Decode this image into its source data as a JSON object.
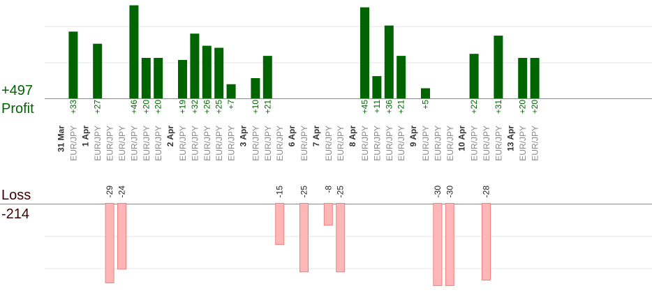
{
  "summary": {
    "profit_caption": "Profit",
    "profit_total": "+497",
    "loss_caption": "Loss",
    "loss_total": "-214"
  },
  "colors": {
    "profit_bar": "#006400",
    "profit_label": "#006400",
    "loss_bar": "#ffb6b6",
    "loss_bar_stroke": "#f08080",
    "loss_label": "#222222",
    "date_label": "#333333",
    "symbol_label": "#888888",
    "grid": "#e6e6e6",
    "axis": "#888888"
  },
  "chart_data": {
    "type": "bar",
    "x_kind": "trade sequence",
    "profit_scale_max": 55,
    "loss_scale_max": 30,
    "trades": [
      {
        "slot": 0,
        "date": "31 Mar"
      },
      {
        "slot": 1,
        "symbol": "EUR/JPY",
        "profit": 33,
        "label": "+33"
      },
      {
        "slot": 2,
        "date": "1 Apr"
      },
      {
        "slot": 3,
        "symbol": "EUR/JPY",
        "profit": 27,
        "label": "+27"
      },
      {
        "slot": 4,
        "symbol": "EUR/JPY",
        "loss": -29,
        "label": "-29"
      },
      {
        "slot": 5,
        "symbol": "EUR/JPY",
        "loss": -24,
        "label": "-24"
      },
      {
        "slot": 6,
        "symbol": "EUR/JPY",
        "profit": 46,
        "label": "+46"
      },
      {
        "slot": 7,
        "symbol": "EUR/JPY",
        "profit": 20,
        "label": "+20"
      },
      {
        "slot": 8,
        "symbol": "EUR/JPY",
        "profit": 20,
        "label": "+20"
      },
      {
        "slot": 9,
        "date": "2 Apr"
      },
      {
        "slot": 10,
        "symbol": "EUR/JPY",
        "profit": 19,
        "label": "+19"
      },
      {
        "slot": 11,
        "symbol": "EUR/JPY",
        "profit": 32,
        "label": "+32"
      },
      {
        "slot": 12,
        "symbol": "EUR/JPY",
        "profit": 26,
        "label": "+26"
      },
      {
        "slot": 13,
        "symbol": "EUR/JPY",
        "profit": 25,
        "label": "+25"
      },
      {
        "slot": 14,
        "symbol": "EUR/JPY",
        "profit": 7,
        "label": "+7"
      },
      {
        "slot": 15,
        "date": "3 Apr"
      },
      {
        "slot": 16,
        "symbol": "EUR/JPY",
        "profit": 10,
        "label": "+10"
      },
      {
        "slot": 17,
        "symbol": "EUR/JPY",
        "profit": 21,
        "label": "+21"
      },
      {
        "slot": 18,
        "symbol": "EUR/JPY",
        "loss": -15,
        "label": "-15"
      },
      {
        "slot": 19,
        "date": "6 Apr"
      },
      {
        "slot": 20,
        "symbol": "EUR/JPY",
        "loss": -25,
        "label": "-25"
      },
      {
        "slot": 21,
        "date": "7 Apr"
      },
      {
        "slot": 22,
        "symbol": "EUR/JPY",
        "loss": -8,
        "label": "-8"
      },
      {
        "slot": 23,
        "symbol": "EUR/JPY",
        "loss": -25,
        "label": "-25"
      },
      {
        "slot": 24,
        "date": "8 Apr"
      },
      {
        "slot": 25,
        "symbol": "EUR/JPY",
        "profit": 45,
        "label": "+45"
      },
      {
        "slot": 26,
        "symbol": "EUR/JPY",
        "profit": 11,
        "label": "+11"
      },
      {
        "slot": 27,
        "symbol": "EUR/JPY",
        "profit": 36,
        "label": "+36"
      },
      {
        "slot": 28,
        "symbol": "EUR/JPY",
        "profit": 21,
        "label": "+21"
      },
      {
        "slot": 29,
        "date": "9 Apr"
      },
      {
        "slot": 30,
        "symbol": "EUR/JPY",
        "profit": 5,
        "label": "+5"
      },
      {
        "slot": 31,
        "symbol": "EUR/JPY",
        "loss": -30,
        "label": "-30"
      },
      {
        "slot": 32,
        "symbol": "EUR/JPY",
        "loss": -30,
        "label": "-30"
      },
      {
        "slot": 33,
        "date": "10 Apr"
      },
      {
        "slot": 34,
        "symbol": "EUR/JPY",
        "profit": 22,
        "label": "+22"
      },
      {
        "slot": 35,
        "symbol": "EUR/JPY",
        "loss": -28,
        "label": "-28"
      },
      {
        "slot": 36,
        "symbol": "EUR/JPY",
        "profit": 31,
        "label": "+31"
      },
      {
        "slot": 37,
        "date": "13 Apr"
      },
      {
        "slot": 38,
        "symbol": "EUR/JPY",
        "profit": 20,
        "label": "+20"
      },
      {
        "slot": 39,
        "symbol": "EUR/JPY",
        "profit": 20,
        "label": "+20"
      }
    ]
  }
}
